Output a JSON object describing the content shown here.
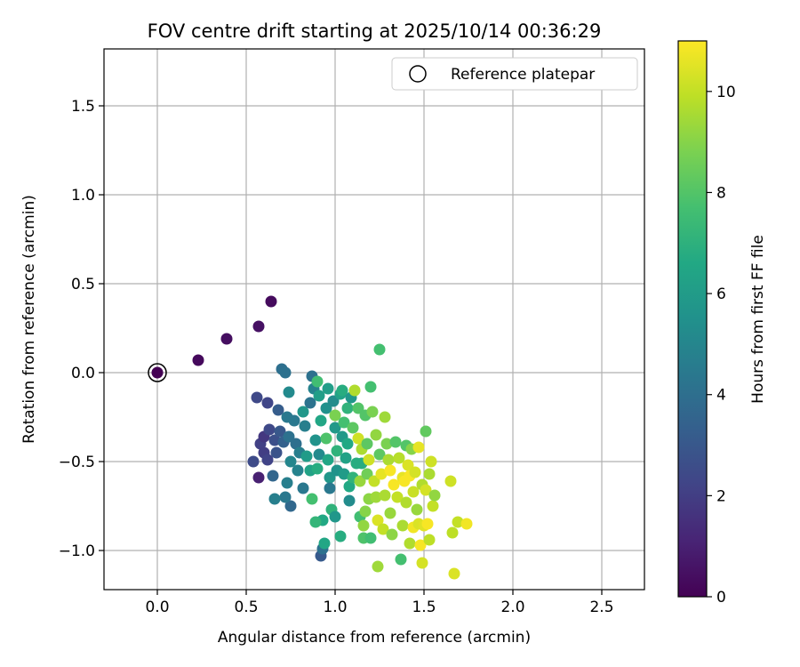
{
  "chart_data": {
    "type": "scatter",
    "title": "FOV centre drift starting at 2025/10/14 00:36:29",
    "xlabel": "Angular distance from reference (arcmin)",
    "ylabel": "Rotation from reference (arcmin)",
    "xlim": [
      -0.3,
      2.74
    ],
    "ylim": [
      -1.22,
      1.82
    ],
    "xticks": [
      0.0,
      0.5,
      1.0,
      1.5,
      2.0,
      2.5
    ],
    "xtick_labels": [
      "0.0",
      "0.5",
      "1.0",
      "1.5",
      "2.0",
      "2.5"
    ],
    "yticks": [
      -1.0,
      -0.5,
      0.0,
      0.5,
      1.0,
      1.5
    ],
    "ytick_labels": [
      "−1.0",
      "−0.5",
      "0.0",
      "0.5",
      "1.0",
      "1.5"
    ],
    "grid": true,
    "legend": {
      "placement": "upper-right",
      "entries": [
        {
          "label": "Reference platepar",
          "marker": "hollow-circle"
        }
      ]
    },
    "colorbar": {
      "label": "Hours from first FF file",
      "colormap": "viridis",
      "range": [
        0,
        11
      ],
      "ticks": [
        0,
        2,
        4,
        6,
        8,
        10
      ],
      "tick_labels": [
        "0",
        "2",
        "4",
        "6",
        "8",
        "10"
      ]
    },
    "reference_point": {
      "x": 0.0,
      "y": 0.0
    },
    "points_format": [
      "x",
      "y",
      "hours"
    ],
    "points": [
      [
        0.0,
        0.0,
        0.0
      ],
      [
        0.23,
        0.07,
        0.25
      ],
      [
        0.39,
        0.19,
        0.4
      ],
      [
        0.57,
        0.26,
        0.5
      ],
      [
        0.64,
        0.4,
        0.3
      ],
      [
        0.57,
        -0.59,
        1.0
      ],
      [
        0.56,
        -0.14,
        2.4
      ],
      [
        0.58,
        -0.4,
        2.1
      ],
      [
        0.6,
        -0.36,
        1.8
      ],
      [
        0.6,
        -0.45,
        2.0
      ],
      [
        0.62,
        -0.17,
        2.3
      ],
      [
        0.63,
        -0.32,
        2.4
      ],
      [
        0.62,
        -0.49,
        2.2
      ],
      [
        0.54,
        -0.5,
        2.5
      ],
      [
        0.67,
        -0.45,
        2.8
      ],
      [
        0.66,
        -0.38,
        2.7
      ],
      [
        0.68,
        -0.21,
        3.2
      ],
      [
        0.69,
        -0.33,
        3.0
      ],
      [
        0.71,
        -0.39,
        3.4
      ],
      [
        0.7,
        0.02,
        4.0
      ],
      [
        0.72,
        0.0,
        4.1
      ],
      [
        0.74,
        -0.11,
        5.2
      ],
      [
        0.73,
        -0.25,
        4.4
      ],
      [
        0.74,
        -0.36,
        4.1
      ],
      [
        0.75,
        -0.5,
        5.0
      ],
      [
        0.73,
        -0.62,
        4.7
      ],
      [
        0.75,
        -0.75,
        3.7
      ],
      [
        0.72,
        -0.7,
        4.4
      ],
      [
        0.65,
        -0.58,
        3.6
      ],
      [
        0.66,
        -0.71,
        4.7
      ],
      [
        0.77,
        -0.27,
        4.4
      ],
      [
        0.78,
        -0.4,
        4.0
      ],
      [
        0.8,
        -0.45,
        4.7
      ],
      [
        0.79,
        -0.55,
        4.9
      ],
      [
        0.82,
        -0.22,
        5.8
      ],
      [
        0.83,
        -0.3,
        4.7
      ],
      [
        0.82,
        -0.65,
        4.4
      ],
      [
        0.84,
        -0.47,
        6.0
      ],
      [
        0.86,
        -0.55,
        6.3
      ],
      [
        0.87,
        -0.02,
        4.1
      ],
      [
        0.88,
        -0.09,
        4.9
      ],
      [
        0.86,
        -0.17,
        4.2
      ],
      [
        0.89,
        -0.38,
        5.6
      ],
      [
        0.87,
        -0.71,
        7.7
      ],
      [
        0.9,
        -0.05,
        7.6
      ],
      [
        0.91,
        -0.13,
        6.1
      ],
      [
        0.92,
        -0.27,
        6.5
      ],
      [
        0.91,
        -0.46,
        5.2
      ],
      [
        0.9,
        -0.54,
        6.8
      ],
      [
        0.93,
        -0.83,
        6.6
      ],
      [
        0.89,
        -0.84,
        7.2
      ],
      [
        0.92,
        -1.03,
        3.1
      ],
      [
        0.93,
        -0.99,
        4.1
      ],
      [
        0.94,
        -0.96,
        6.5
      ],
      [
        0.96,
        -0.09,
        6.1
      ],
      [
        0.95,
        -0.2,
        5.5
      ],
      [
        0.95,
        -0.37,
        7.9
      ],
      [
        0.96,
        -0.49,
        6.5
      ],
      [
        0.97,
        -0.59,
        5.8
      ],
      [
        0.97,
        -0.65,
        4.4
      ],
      [
        0.98,
        -0.77,
        7.1
      ],
      [
        0.99,
        -0.16,
        5.3
      ],
      [
        1.0,
        -0.24,
        8.8
      ],
      [
        1.0,
        -0.31,
        5.9
      ],
      [
        1.01,
        -0.44,
        7.1
      ],
      [
        1.01,
        -0.55,
        5.6
      ],
      [
        1.0,
        -0.81,
        5.8
      ],
      [
        1.03,
        -0.12,
        6.3
      ],
      [
        1.03,
        -0.92,
        6.8
      ],
      [
        1.04,
        -0.1,
        6.8
      ],
      [
        1.04,
        -0.36,
        5.9
      ],
      [
        1.05,
        -0.28,
        7.7
      ],
      [
        1.05,
        -0.57,
        6.0
      ],
      [
        1.06,
        -0.48,
        6.3
      ],
      [
        1.07,
        -0.2,
        7.1
      ],
      [
        1.07,
        -0.4,
        6.6
      ],
      [
        1.08,
        -0.64,
        6.6
      ],
      [
        1.08,
        -0.72,
        5.3
      ],
      [
        1.09,
        -0.14,
        5.8
      ],
      [
        1.1,
        -0.31,
        8.2
      ],
      [
        1.1,
        -0.59,
        7.1
      ],
      [
        1.11,
        -0.1,
        9.7
      ],
      [
        1.12,
        -0.51,
        6.8
      ],
      [
        1.13,
        -0.2,
        8.0
      ],
      [
        1.13,
        -0.37,
        10.2
      ],
      [
        1.14,
        -0.61,
        9.3
      ],
      [
        1.14,
        -0.81,
        7.6
      ],
      [
        1.15,
        -0.43,
        9.6
      ],
      [
        1.15,
        -0.51,
        6.8
      ],
      [
        1.16,
        -0.86,
        9.2
      ],
      [
        1.16,
        -0.93,
        7.9
      ],
      [
        1.17,
        -0.24,
        8.0
      ],
      [
        1.17,
        -0.78,
        9.0
      ],
      [
        1.18,
        -0.4,
        8.2
      ],
      [
        1.18,
        -0.57,
        8.6
      ],
      [
        1.19,
        -0.71,
        9.1
      ],
      [
        1.19,
        -0.49,
        10.2
      ],
      [
        1.2,
        -0.08,
        7.7
      ],
      [
        1.2,
        -0.93,
        7.6
      ],
      [
        1.21,
        -0.22,
        8.8
      ],
      [
        1.22,
        -0.61,
        10.0
      ],
      [
        1.23,
        -0.35,
        9.2
      ],
      [
        1.23,
        -0.7,
        9.4
      ],
      [
        1.24,
        -0.83,
        10.4
      ],
      [
        1.24,
        -1.09,
        9.4
      ],
      [
        1.25,
        0.13,
        7.7
      ],
      [
        1.25,
        -0.46,
        8.2
      ],
      [
        1.26,
        -0.57,
        10.6
      ],
      [
        1.27,
        -0.88,
        10.0
      ],
      [
        1.28,
        -0.25,
        9.4
      ],
      [
        1.28,
        -0.69,
        9.6
      ],
      [
        1.29,
        -0.4,
        8.8
      ],
      [
        1.3,
        -0.49,
        9.6
      ],
      [
        1.31,
        -0.55,
        10.9
      ],
      [
        1.31,
        -0.79,
        9.3
      ],
      [
        1.32,
        -0.91,
        9.1
      ],
      [
        1.33,
        -0.63,
        10.9
      ],
      [
        1.34,
        -0.39,
        8.0
      ],
      [
        1.35,
        -0.7,
        10.0
      ],
      [
        1.36,
        -0.48,
        9.8
      ],
      [
        1.37,
        -1.05,
        7.7
      ],
      [
        1.38,
        -0.59,
        10.6
      ],
      [
        1.38,
        -0.86,
        9.6
      ],
      [
        1.39,
        -0.61,
        10.9
      ],
      [
        1.4,
        -0.41,
        8.0
      ],
      [
        1.4,
        -0.73,
        9.7
      ],
      [
        1.41,
        -0.52,
        10.4
      ],
      [
        1.42,
        -0.58,
        10.9
      ],
      [
        1.42,
        -0.96,
        9.7
      ],
      [
        1.43,
        -0.43,
        9.0
      ],
      [
        1.44,
        -0.67,
        10.1
      ],
      [
        1.44,
        -0.87,
        10.8
      ],
      [
        1.45,
        -0.56,
        10.3
      ],
      [
        1.46,
        -0.77,
        9.3
      ],
      [
        1.47,
        -0.42,
        10.6
      ],
      [
        1.47,
        -0.85,
        10.4
      ],
      [
        1.48,
        -0.97,
        10.9
      ],
      [
        1.49,
        -1.07,
        10.3
      ],
      [
        1.49,
        -0.63,
        9.7
      ],
      [
        1.5,
        -0.86,
        10.5
      ],
      [
        1.51,
        -0.33,
        8.3
      ],
      [
        1.51,
        -0.66,
        10.3
      ],
      [
        1.52,
        -0.85,
        10.9
      ],
      [
        1.53,
        -0.94,
        9.9
      ],
      [
        1.53,
        -0.57,
        9.6
      ],
      [
        1.54,
        -0.5,
        10.2
      ],
      [
        1.55,
        -0.75,
        10.0
      ],
      [
        1.56,
        -0.69,
        9.2
      ],
      [
        1.65,
        -0.61,
        10.2
      ],
      [
        1.66,
        -0.9,
        9.9
      ],
      [
        1.67,
        -1.13,
        10.4
      ],
      [
        1.69,
        -0.84,
        10.0
      ],
      [
        1.74,
        -0.85,
        10.8
      ]
    ]
  }
}
